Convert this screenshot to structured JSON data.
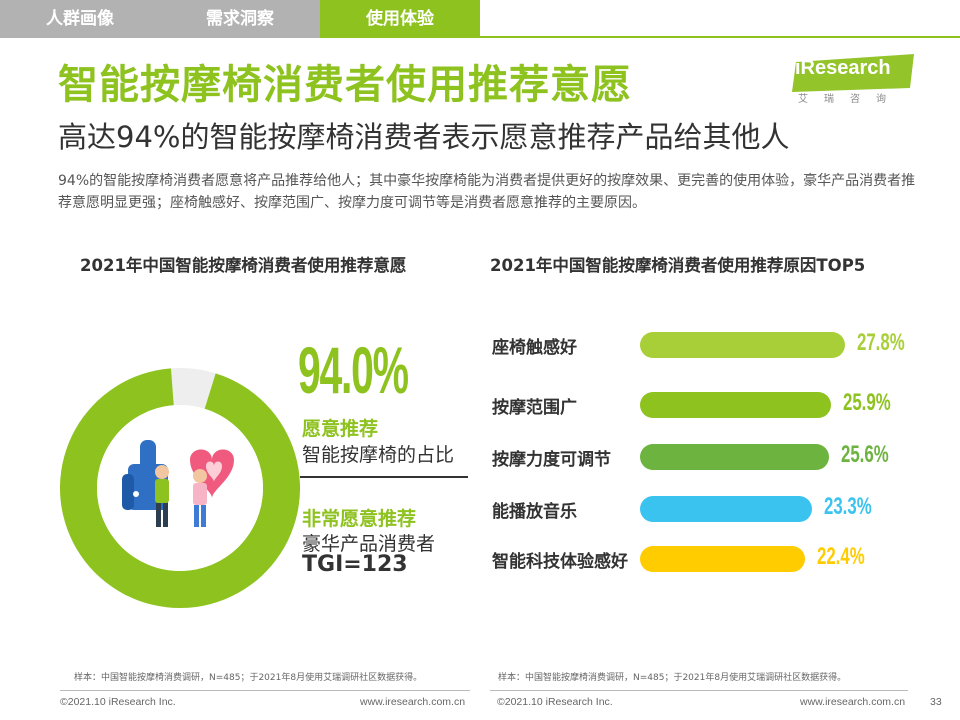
{
  "tabs": [
    {
      "label": "人群画像",
      "active": false
    },
    {
      "label": "需求洞察",
      "active": false
    },
    {
      "label": "使用体验",
      "active": true
    }
  ],
  "logo": {
    "text": "iResearch",
    "subtext": "艾瑞咨询"
  },
  "header": {
    "title": "智能按摩椅消费者使用推荐意愿",
    "subtitle": "高达94%的智能按摩椅消费者表示愿意推荐产品给其他人",
    "description": "94%的智能按摩椅消费者愿意将产品推荐给他人；其中豪华按摩椅能为消费者提供更好的按摩效果、更完善的使用体验，豪华产品消费者推荐意愿明显更强；座椅触感好、按摩范围广、按摩力度可调节等是消费者愿意推荐的主要原因。"
  },
  "left_panel": {
    "title": "2021年中国智能按摩椅消费者使用推荐意愿",
    "big_value": "94.0%",
    "label1_green": "愿意推荐",
    "label1_dark": "智能按摩椅的占比",
    "label2_green": "非常愿意推荐",
    "label2_dark": "豪华产品消费者",
    "tgi": "TGI=123",
    "note": "样本：中国智能按摩椅消费调研，N=485；于2021年8月使用艾瑞调研社区数据获得。"
  },
  "right_panel": {
    "title": "2021年中国智能按摩椅消费者使用推荐原因TOP5",
    "note": "样本：中国智能按摩椅消费调研，N=485；于2021年8月使用艾瑞调研社区数据获得。"
  },
  "chart_data": [
    {
      "type": "pie",
      "title": "2021年中国智能按摩椅消费者使用推荐意愿",
      "values": [
        94.0,
        6.0
      ],
      "colors": [
        "#8dc21f",
        "#eeeeee"
      ]
    },
    {
      "type": "bar",
      "orientation": "horizontal",
      "title": "2021年中国智能按摩椅消费者使用推荐原因TOP5",
      "categories": [
        "座椅触感好",
        "按摩范围广",
        "按摩力度可调节",
        "能播放音乐",
        "智能科技体验感好"
      ],
      "values": [
        27.8,
        25.9,
        25.6,
        23.3,
        22.4
      ],
      "value_labels": [
        "27.8%",
        "25.9%",
        "25.6%",
        "23.3%",
        "22.4%"
      ],
      "colors": [
        "#a8cf38",
        "#8dc21f",
        "#6cb33f",
        "#3bc3f0",
        "#ffcc00"
      ]
    }
  ],
  "footer": {
    "left_copyright": "©2021.10 iResearch Inc.",
    "left_url": "www.iresearch.com.cn",
    "right_copyright": "©2021.10 iResearch Inc.",
    "right_url": "www.iresearch.com.cn",
    "page_number": "33"
  }
}
